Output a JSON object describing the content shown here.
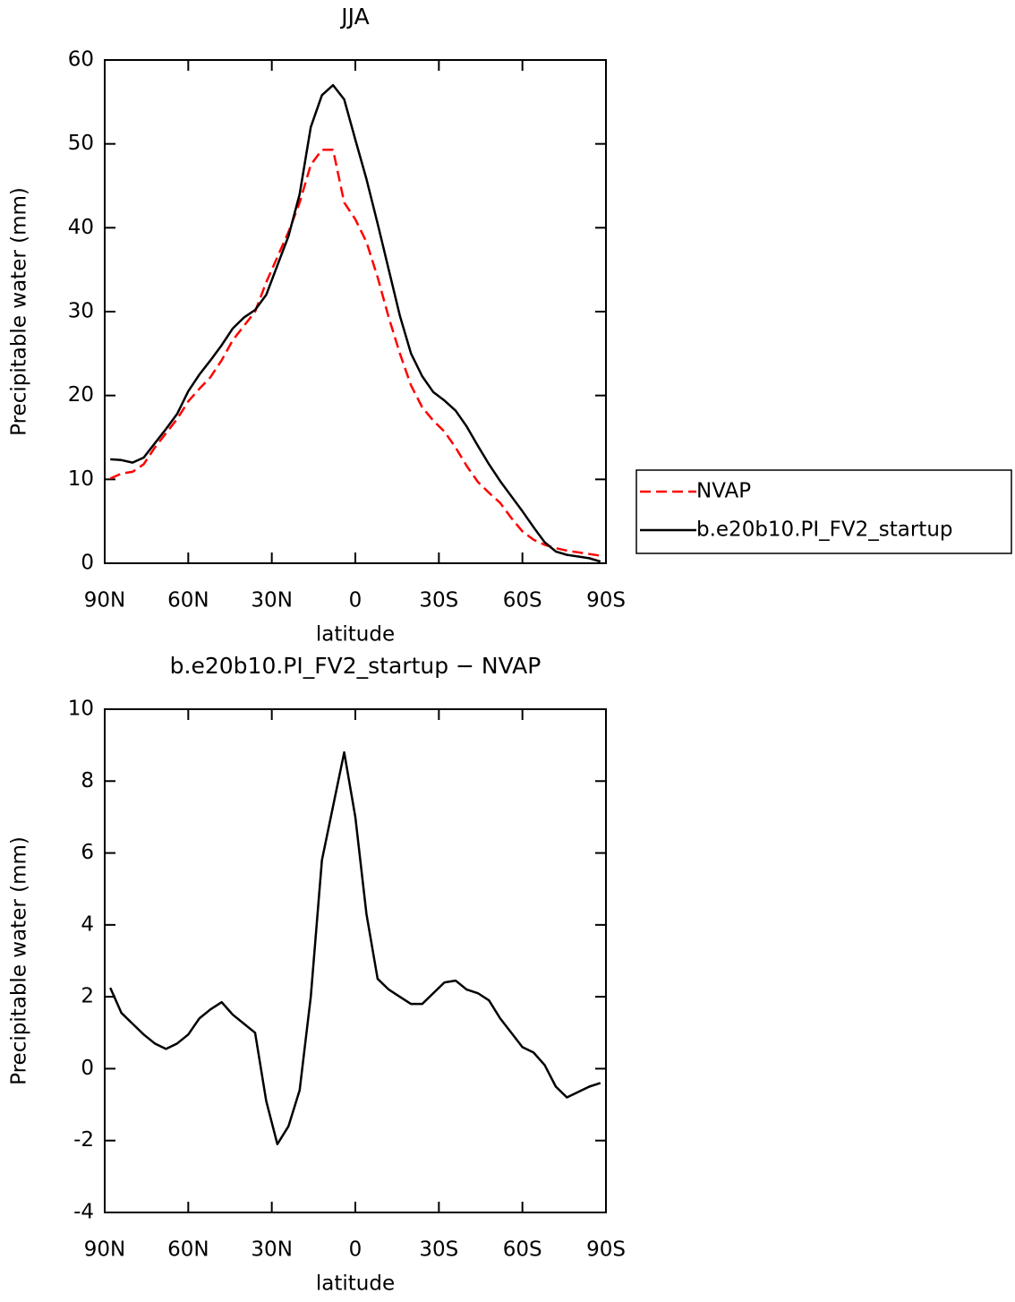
{
  "chart_data": [
    {
      "type": "line",
      "title": "JJA",
      "xlabel": "latitude",
      "ylabel": "Precipitable water (mm)",
      "x": [
        88,
        84,
        80,
        76,
        72,
        68,
        64,
        60,
        56,
        52,
        48,
        44,
        40,
        36,
        32,
        28,
        24,
        20,
        16,
        12,
        8,
        4,
        0,
        -4,
        -8,
        -12,
        -16,
        -20,
        -24,
        -28,
        -32,
        -36,
        -40,
        -44,
        -48,
        -52,
        -56,
        -60,
        -64,
        -68,
        -72,
        -76,
        -80,
        -84,
        -88
      ],
      "xlim": [
        90,
        -90
      ],
      "xticks": [
        {
          "value": 90,
          "label": "90N"
        },
        {
          "value": 60,
          "label": "60N"
        },
        {
          "value": 30,
          "label": "30N"
        },
        0,
        {
          "value": -30,
          "label": "30S"
        },
        {
          "value": -60,
          "label": "60S"
        },
        {
          "value": -90,
          "label": "90S"
        }
      ],
      "ylim": [
        0,
        60
      ],
      "yticks": [
        0,
        10,
        20,
        30,
        40,
        50,
        60
      ],
      "legend": "outside-right",
      "series": [
        {
          "name": "NVAP",
          "color": "#ff0000",
          "linestyle": "dashed",
          "values": [
            10.1,
            10.7,
            10.9,
            11.8,
            13.8,
            15.5,
            17.2,
            19.3,
            20.8,
            22.2,
            24.2,
            26.6,
            28.3,
            30.0,
            33.5,
            36.5,
            39.5,
            43.0,
            47.5,
            49.3,
            49.3,
            43.0,
            41.0,
            38.3,
            34.1,
            29.3,
            25.0,
            21.2,
            18.6,
            17.0,
            15.7,
            13.8,
            11.6,
            9.7,
            8.4,
            7.2,
            5.4,
            3.8,
            2.8,
            2.2,
            1.8,
            1.5,
            1.3,
            1.1,
            0.9
          ]
        },
        {
          "name": "b.e20b10.PI_FV2_startup",
          "color": "#000000",
          "linestyle": "solid",
          "values": [
            12.4,
            12.3,
            12.0,
            12.6,
            14.3,
            16.0,
            17.8,
            20.5,
            22.5,
            24.2,
            26.0,
            28.0,
            29.3,
            30.2,
            32.0,
            35.5,
            39.0,
            44.0,
            52.0,
            55.8,
            57.0,
            55.3,
            50.5,
            45.8,
            40.5,
            35.0,
            29.5,
            25.0,
            22.3,
            20.4,
            19.4,
            18.2,
            16.3,
            14.0,
            11.8,
            9.8,
            8.0,
            6.2,
            4.3,
            2.5,
            1.4,
            1.0,
            0.8,
            0.6,
            0.2
          ]
        }
      ]
    },
    {
      "type": "line",
      "title": "b.e20b10.PI_FV2_startup − NVAP",
      "xlabel": "latitude",
      "ylabel": "Precipitable water (mm)",
      "x": [
        88,
        84,
        80,
        76,
        72,
        68,
        64,
        60,
        56,
        52,
        48,
        44,
        40,
        36,
        32,
        28,
        24,
        20,
        16,
        12,
        8,
        4,
        0,
        -4,
        -8,
        -12,
        -16,
        -20,
        -24,
        -28,
        -32,
        -36,
        -40,
        -44,
        -48,
        -52,
        -56,
        -60,
        -64,
        -68,
        -72,
        -76,
        -80,
        -84,
        -88
      ],
      "xlim": [
        90,
        -90
      ],
      "xticks": [
        {
          "value": 90,
          "label": "90N"
        },
        {
          "value": 60,
          "label": "60N"
        },
        {
          "value": 30,
          "label": "30N"
        },
        0,
        {
          "value": -30,
          "label": "30S"
        },
        {
          "value": -60,
          "label": "60S"
        },
        {
          "value": -90,
          "label": "90S"
        }
      ],
      "ylim": [
        -4,
        10
      ],
      "yticks": [
        -4,
        -2,
        0,
        2,
        4,
        6,
        8,
        10
      ],
      "series": [
        {
          "color": "#000000",
          "linestyle": "solid",
          "values": [
            2.25,
            1.55,
            1.25,
            0.95,
            0.7,
            0.55,
            0.7,
            0.95,
            1.4,
            1.65,
            1.85,
            1.5,
            1.25,
            1.0,
            -0.9,
            -2.1,
            -1.6,
            -0.6,
            2.0,
            5.8,
            7.3,
            8.8,
            7.0,
            4.3,
            2.5,
            2.2,
            2.0,
            1.8,
            1.8,
            2.1,
            2.4,
            2.45,
            2.2,
            2.1,
            1.9,
            1.4,
            1.0,
            0.6,
            0.45,
            0.1,
            -0.5,
            -0.8,
            -0.65,
            -0.5,
            -0.4
          ]
        }
      ]
    }
  ]
}
